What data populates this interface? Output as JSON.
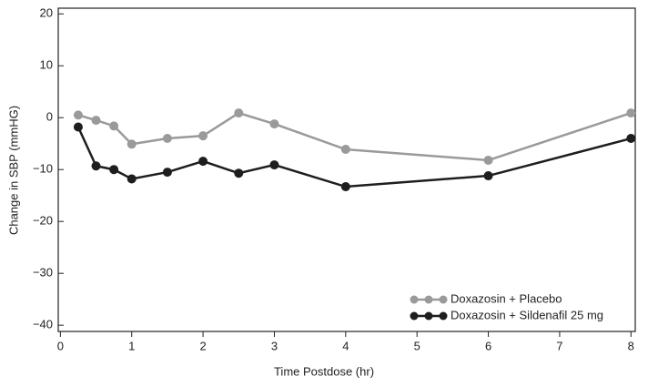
{
  "chart_data": {
    "type": "line",
    "x_label": "Time Postdose (hr)",
    "y_label": "Change in SBP (mmHG)",
    "x": [
      0.25,
      0.5,
      0.75,
      1,
      1.5,
      2,
      2.5,
      3,
      4,
      6,
      8
    ],
    "series": [
      {
        "name": "Doxazosin + Placebo",
        "color": "#9a9a9a",
        "values": [
          0.5,
          -0.5,
          -1.6,
          -5.1,
          -4.0,
          -3.5,
          0.9,
          -1.2,
          -6.1,
          -8.2,
          0.9
        ]
      },
      {
        "name": "Doxazosin + Sildenafil 25 mg",
        "color": "#1e1e1e",
        "values": [
          -1.8,
          -9.3,
          -10.0,
          -11.8,
          -10.5,
          -8.4,
          -10.7,
          -9.1,
          -13.3,
          -11.2,
          -4.0
        ]
      }
    ],
    "xlim": [
      -0.03,
      8.06
    ],
    "xticks": [
      0,
      1,
      2,
      3,
      4,
      5,
      6,
      7,
      8
    ],
    "ylim": [
      -41.2,
      21.1
    ],
    "yticks": [
      {
        "value": -40,
        "label": "−40"
      },
      {
        "value": -30,
        "label": "−30"
      },
      {
        "value": -20,
        "label": "−20"
      },
      {
        "value": -10,
        "label": "−10"
      },
      0,
      10,
      20
    ],
    "legend": "lower right"
  }
}
